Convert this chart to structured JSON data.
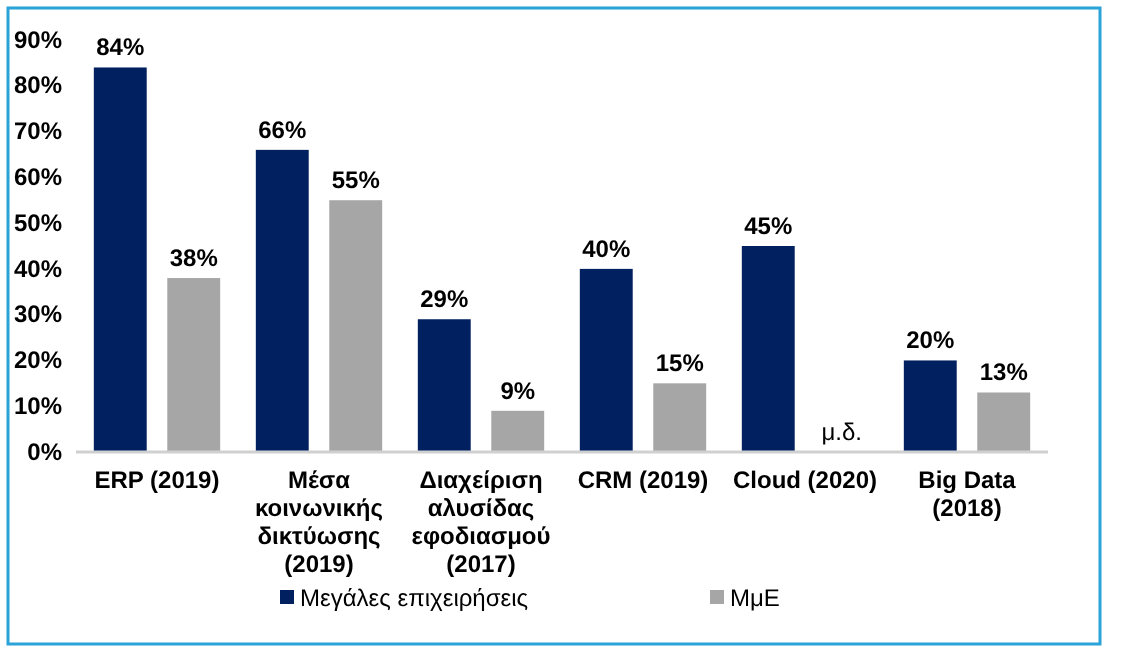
{
  "chart_data": {
    "type": "bar",
    "categories": [
      "ERP (2019)",
      "Μέσα κοινωνικής δικτύωσης (2019)",
      "Διαχείριση αλυσίδας εφοδιασμού (2017)",
      "CRM (2019)",
      "Cloud (2020)",
      "Big Data (2018)"
    ],
    "series": [
      {
        "name": "Μεγάλες επιχειρήσεις",
        "color": "#002060",
        "values": [
          84,
          66,
          29,
          40,
          45,
          20
        ],
        "value_labels": [
          "84%",
          "66%",
          "29%",
          "40%",
          "45%",
          "20%"
        ]
      },
      {
        "name": "ΜμΕ",
        "color": "#a6a6a6",
        "values": [
          38,
          55,
          9,
          15,
          null,
          13
        ],
        "value_labels": [
          "38%",
          "55%",
          "9%",
          "15%",
          "μ.δ.",
          "13%"
        ]
      }
    ],
    "ylim": [
      0,
      90
    ],
    "yticks": [
      {
        "value": 0,
        "label": "0%"
      },
      {
        "value": 10,
        "label": "10%"
      },
      {
        "value": 20,
        "label": "20%"
      },
      {
        "value": 30,
        "label": "30%"
      },
      {
        "value": 40,
        "label": "40%"
      },
      {
        "value": 50,
        "label": "50%"
      },
      {
        "value": 60,
        "label": "60%"
      },
      {
        "value": 70,
        "label": "70%"
      },
      {
        "value": 80,
        "label": "80%"
      },
      {
        "value": 90,
        "label": "90%"
      }
    ],
    "grid": false,
    "legend": "bottom"
  }
}
